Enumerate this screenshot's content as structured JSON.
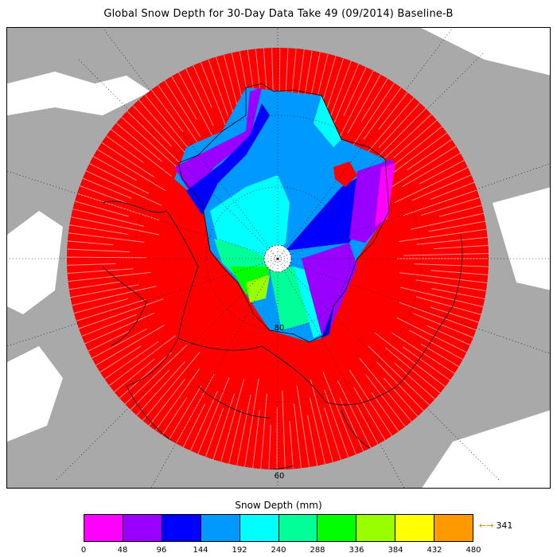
{
  "title": "Global Snow Depth for 30-Day Data Take 49 (09/2014) Baseline-B",
  "map": {
    "projection": "north-polar-stereographic",
    "latitude_labels": [
      "80",
      "60"
    ],
    "fill_color": "#ff0000",
    "land_outside_color": "#a9a9a9",
    "ocean_color": "#ffffff"
  },
  "legend": {
    "title": "Snow Depth (mm)",
    "ticks": [
      "0",
      "48",
      "96",
      "144",
      "192",
      "240",
      "288",
      "336",
      "384",
      "432",
      "480"
    ],
    "colors": [
      "#ff00ff",
      "#9900ff",
      "#0000ff",
      "#0099ff",
      "#00ffff",
      "#00ff99",
      "#00ff00",
      "#99ff00",
      "#ffff00",
      "#ff9900"
    ],
    "max_note_value": "341",
    "arrow_symbol": "←→"
  }
}
